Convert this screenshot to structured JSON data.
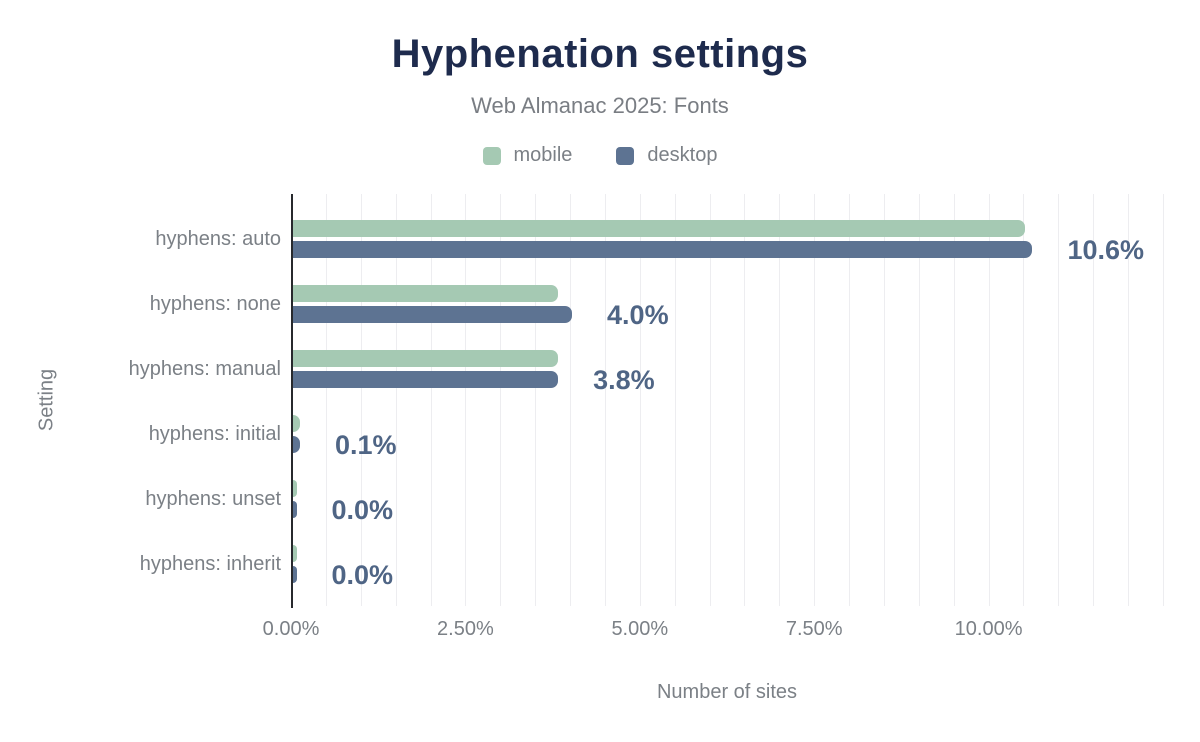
{
  "header": {
    "title": "Hyphenation settings",
    "subtitle": "Web Almanac 2025: Fonts"
  },
  "legend": {
    "items": [
      {
        "label": "mobile",
        "color": "#a5c9b3"
      },
      {
        "label": "desktop",
        "color": "#5d7392"
      }
    ]
  },
  "chart_data": {
    "type": "bar",
    "orientation": "horizontal",
    "title": "Hyphenation settings",
    "subtitle": "Web Almanac 2025: Fonts",
    "categories": [
      "hyphens: auto",
      "hyphens: none",
      "hyphens: manual",
      "hyphens: initial",
      "hyphens: unset",
      "hyphens: inherit"
    ],
    "series": [
      {
        "name": "mobile",
        "color": "#a5c9b3",
        "values": [
          10.5,
          3.8,
          3.8,
          0.1,
          0.0,
          0.0
        ]
      },
      {
        "name": "desktop",
        "color": "#5d7392",
        "values": [
          10.6,
          4.0,
          3.8,
          0.1,
          0.0,
          0.0
        ]
      }
    ],
    "value_labels": [
      "10.6%",
      "4.0%",
      "3.8%",
      "0.1%",
      "0.0%",
      "0.0%"
    ],
    "xlabel": "Number of sites",
    "ylabel": "Setting",
    "x_ticks": [
      {
        "label": "0.00%",
        "value": 0
      },
      {
        "label": "2.50%",
        "value": 2.5
      },
      {
        "label": "5.00%",
        "value": 5
      },
      {
        "label": "7.50%",
        "value": 7.5
      },
      {
        "label": "10.00%",
        "value": 10
      }
    ],
    "xlim": [
      0,
      12.5
    ],
    "gridline_step": 0.5,
    "grid": true,
    "legend_position": "top"
  },
  "colors": {
    "title": "#1e2b4d",
    "text_muted": "#7b8086",
    "value_label": "#4f6585",
    "gridline": "#ededf0",
    "axis_line": "#27292d",
    "background": "#ffffff"
  }
}
